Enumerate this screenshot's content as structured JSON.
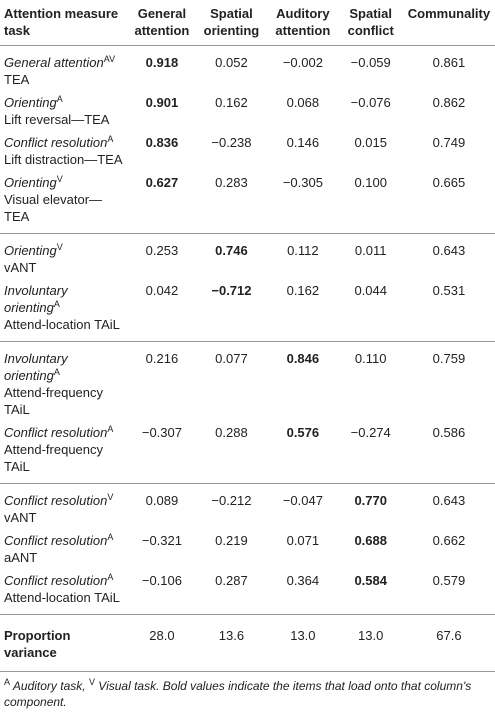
{
  "table": {
    "columns": [
      "Attention measure task",
      "General attention",
      "Spatial orienting",
      "Auditory attention",
      "Spatial conflict",
      "Communality"
    ],
    "groups": [
      [
        {
          "measure": "General attention",
          "sup": "AV",
          "task": "TEA",
          "values": [
            "0.918",
            "0.052",
            "−0.002",
            "−0.059",
            "0.861"
          ],
          "bold": 0
        },
        {
          "measure": "Orienting",
          "sup": "A",
          "task": "Lift reversal—TEA",
          "values": [
            "0.901",
            "0.162",
            "0.068",
            "−0.076",
            "0.862"
          ],
          "bold": 0
        },
        {
          "measure": "Conflict resolution",
          "sup": "A",
          "task": "Lift distraction—TEA",
          "values": [
            "0.836",
            "−0.238",
            "0.146",
            "0.015",
            "0.749"
          ],
          "bold": 0
        },
        {
          "measure": "Orienting",
          "sup": "V",
          "task": "Visual elevator—TEA",
          "values": [
            "0.627",
            "0.283",
            "−0.305",
            "0.100",
            "0.665"
          ],
          "bold": 0
        }
      ],
      [
        {
          "measure": "Orienting",
          "sup": "V",
          "task": "vANT",
          "values": [
            "0.253",
            "0.746",
            "0.112",
            "0.011",
            "0.643"
          ],
          "bold": 1
        },
        {
          "measure": "Involuntary orienting",
          "sup": "A",
          "task": "Attend-location TAiL",
          "values": [
            "0.042",
            "−0.712",
            "0.162",
            "0.044",
            "0.531"
          ],
          "bold": 1
        }
      ],
      [
        {
          "measure": "Involuntary orienting",
          "sup": "A",
          "task": "Attend-frequency TAiL",
          "values": [
            "0.216",
            "0.077",
            "0.846",
            "0.110",
            "0.759"
          ],
          "bold": 2
        },
        {
          "measure": "Conflict resolution",
          "sup": "A",
          "task": "Attend-frequency TAiL",
          "values": [
            "−0.307",
            "0.288",
            "0.576",
            "−0.274",
            "0.586"
          ],
          "bold": 2
        }
      ],
      [
        {
          "measure": "Conflict resolution",
          "sup": "V",
          "task": "vANT",
          "values": [
            "0.089",
            "−0.212",
            "−0.047",
            "0.770",
            "0.643"
          ],
          "bold": 3
        },
        {
          "measure": "Conflict resolution",
          "sup": "A",
          "task": "aANT",
          "values": [
            "−0.321",
            "0.219",
            "0.071",
            "0.688",
            "0.662"
          ],
          "bold": 3
        },
        {
          "measure": "Conflict resolution",
          "sup": "A",
          "task": "Attend-location TAiL",
          "values": [
            "−0.106",
            "0.287",
            "0.364",
            "0.584",
            "0.579"
          ],
          "bold": 3
        }
      ]
    ],
    "footer": {
      "label": "Proportion variance",
      "values": [
        "28.0",
        "13.6",
        "13.0",
        "13.0",
        "67.6"
      ]
    },
    "footnote": [
      {
        "mark": "A",
        "text": " Auditory task, "
      },
      {
        "mark": "V",
        "text": " Visual task. Bold values indicate the items that load onto that column's component."
      }
    ]
  }
}
